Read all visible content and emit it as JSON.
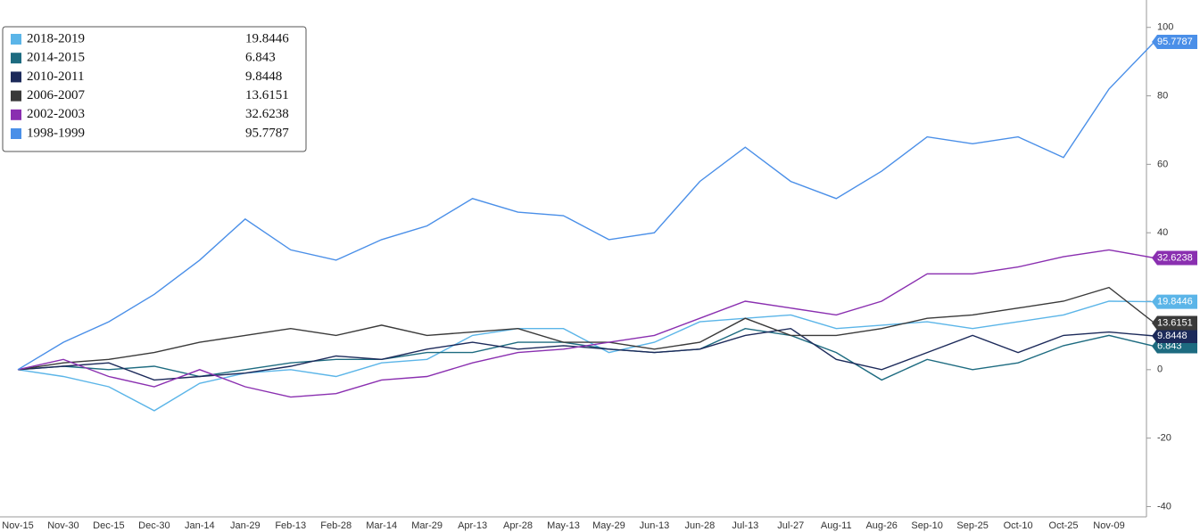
{
  "chart_data": {
    "type": "line",
    "categories": [
      "Nov-15",
      "Nov-30",
      "Dec-15",
      "Dec-30",
      "Jan-14",
      "Jan-29",
      "Feb-13",
      "Feb-28",
      "Mar-14",
      "Mar-29",
      "Apr-13",
      "Apr-28",
      "May-13",
      "May-29",
      "Jun-13",
      "Jun-28",
      "Jul-13",
      "Jul-27",
      "Aug-11",
      "Aug-26",
      "Sep-10",
      "Sep-25",
      "Oct-10",
      "Oct-25",
      "Nov-09",
      null
    ],
    "series": [
      {
        "name": "2018-2019",
        "color": "#5bb5e8",
        "values": [
          0,
          -2,
          -5,
          -12,
          -4,
          -1,
          0,
          -2,
          2,
          3,
          10,
          12,
          12,
          5,
          8,
          14,
          15,
          16,
          12,
          13,
          14,
          12,
          14,
          16,
          20,
          19.8446
        ]
      },
      {
        "name": "2014-2015",
        "color": "#1d6b80",
        "values": [
          0,
          1,
          0,
          1,
          -2,
          0,
          2,
          3,
          3,
          5,
          5,
          8,
          8,
          6,
          5,
          6,
          12,
          10,
          5,
          -3,
          3,
          0,
          2,
          7,
          10,
          6.843
        ]
      },
      {
        "name": "2010-2011",
        "color": "#1c2a5a",
        "values": [
          0,
          1,
          2,
          -3,
          -2,
          -1,
          1,
          4,
          3,
          6,
          8,
          6,
          7,
          6,
          5,
          6,
          10,
          12,
          3,
          0,
          5,
          10,
          5,
          10,
          11,
          9.8448
        ]
      },
      {
        "name": "2006-2007",
        "color": "#3a3a3a",
        "values": [
          0,
          2,
          3,
          5,
          8,
          10,
          12,
          10,
          13,
          10,
          11,
          12,
          8,
          8,
          6,
          8,
          15,
          10,
          10,
          12,
          15,
          16,
          18,
          20,
          24,
          13.6151
        ]
      },
      {
        "name": "2002-2003",
        "color": "#8a2fb0",
        "values": [
          0,
          3,
          -2,
          -5,
          0,
          -5,
          -8,
          -7,
          -3,
          -2,
          2,
          5,
          6,
          8,
          10,
          15,
          20,
          18,
          16,
          20,
          28,
          28,
          30,
          33,
          35,
          32.6238
        ]
      },
      {
        "name": "1998-1999",
        "color": "#4a8fe8",
        "values": [
          0,
          8,
          14,
          22,
          32,
          44,
          35,
          32,
          38,
          42,
          50,
          46,
          45,
          38,
          40,
          55,
          65,
          55,
          50,
          58,
          68,
          66,
          68,
          62,
          82,
          95.7787
        ]
      }
    ],
    "ylim": [
      -43,
      108
    ],
    "yticks": [
      -40,
      -20,
      0,
      20,
      40,
      60,
      80,
      100
    ],
    "legend": "upper left"
  }
}
